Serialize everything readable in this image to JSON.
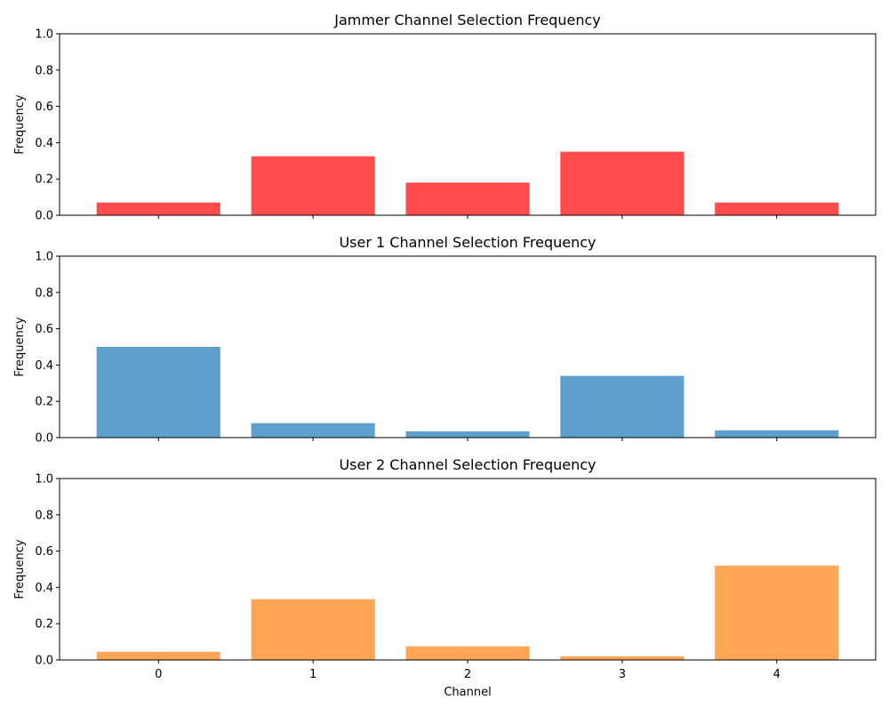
{
  "chart_data": [
    {
      "type": "bar",
      "title": "Jammer Channel Selection Frequency",
      "xlabel": "",
      "ylabel": "Frequency",
      "ylim": [
        0,
        1
      ],
      "yticks": [
        "0.0",
        "0.2",
        "0.4",
        "0.6",
        "0.8",
        "1.0"
      ],
      "categories": [
        "0",
        "1",
        "2",
        "3",
        "4"
      ],
      "show_xtick_labels": false,
      "color": "#ff4b4b",
      "values": [
        0.07,
        0.325,
        0.18,
        0.35,
        0.07
      ]
    },
    {
      "type": "bar",
      "title": "User 1 Channel Selection Frequency",
      "xlabel": "",
      "ylabel": "Frequency",
      "ylim": [
        0,
        1
      ],
      "yticks": [
        "0.0",
        "0.2",
        "0.4",
        "0.6",
        "0.8",
        "1.0"
      ],
      "categories": [
        "0",
        "1",
        "2",
        "3",
        "4"
      ],
      "show_xtick_labels": false,
      "color": "#5f9fcc",
      "values": [
        0.5,
        0.08,
        0.035,
        0.34,
        0.04
      ]
    },
    {
      "type": "bar",
      "title": "User 2 Channel Selection Frequency",
      "xlabel": "Channel",
      "ylabel": "Frequency",
      "ylim": [
        0,
        1
      ],
      "yticks": [
        "0.0",
        "0.2",
        "0.4",
        "0.6",
        "0.8",
        "1.0"
      ],
      "categories": [
        "0",
        "1",
        "2",
        "3",
        "4"
      ],
      "show_xtick_labels": true,
      "color": "#ffa555",
      "values": [
        0.045,
        0.335,
        0.075,
        0.02,
        0.52
      ]
    }
  ]
}
